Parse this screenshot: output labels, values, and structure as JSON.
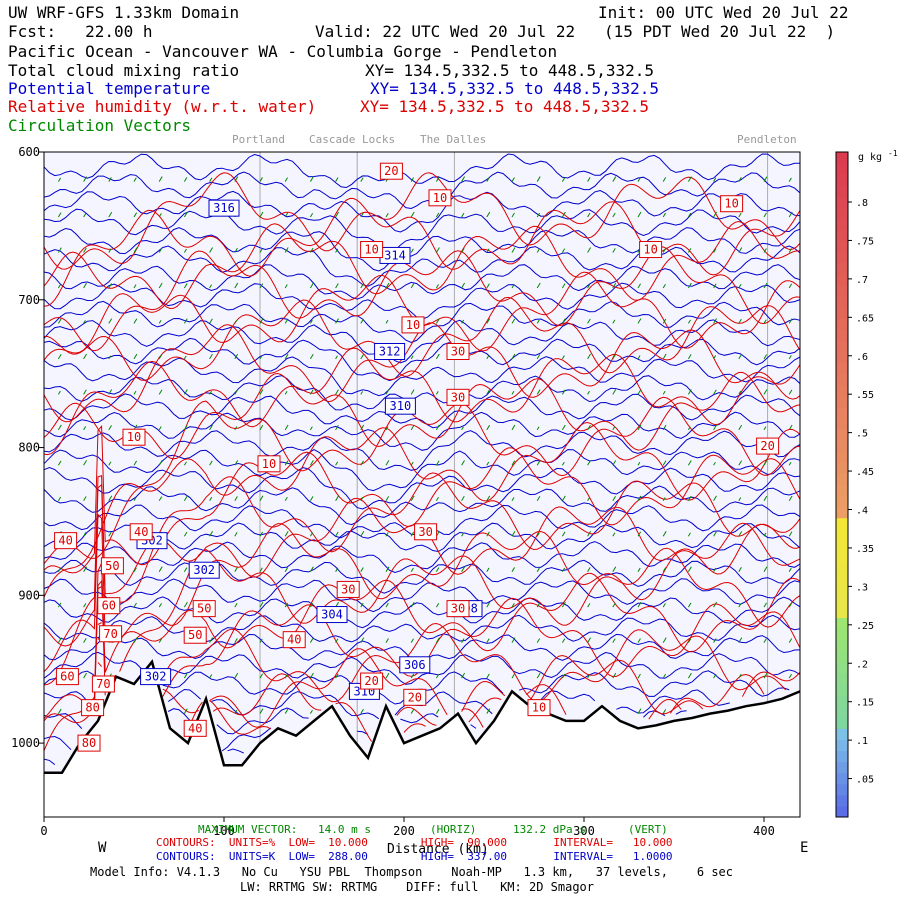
{
  "header": {
    "title": "UW WRF-GFS 1.33km Domain",
    "init": "Init: 00 UTC Wed 20 Jul 22",
    "fcst": "Fcst:   22.00 h",
    "valid": "Valid: 22 UTC Wed 20 Jul 22   (15 PDT Wed 20 Jul 22  )",
    "region": "Pacific Ocean - Vancouver WA - Columbia Gorge - Pendleton",
    "var1": "Total cloud mixing ratio",
    "var1_xy": "XY= 134.5,332.5 to 448.5,332.5",
    "var2": "Potential temperature",
    "var2_xy": "XY= 134.5,332.5 to 448.5,332.5",
    "var3": "Relative humidity (w.r.t. water)",
    "var3_xy": "XY= 134.5,332.5 to 448.5,332.5",
    "var4": "Circulation Vectors"
  },
  "cities": [
    "Portland",
    "Cascade Locks",
    "The Dalles",
    "Pendleton"
  ],
  "footer": {
    "vector_label": "MAXIMUM VECTOR:",
    "vector_horiz": "14.0 m s",
    "vector_horiz_unit": "(HORIZ)",
    "vector_vert": "132.2 dPa s",
    "vector_vert_unit": "(VERT)",
    "west": "W",
    "east": "E",
    "xlabel": "Distance (km)",
    "rh_contours": "CONTOURS:  UNITS=%  LOW=  10.000        HIGH=  90.000       INTERVAL=   10.000",
    "th_contours": "CONTOURS:  UNITS=K  LOW=  288.00        HIGH=  337.00       INTERVAL=   1.0000",
    "model_info": "Model Info: V4.1.3   No Cu   YSU PBL  Thompson    Noah-MP   1.3 km,   37 levels,    6 sec",
    "model_info2": "LW: RRTMG SW: RRTMG    DIFF: full   KM: 2D Smagor"
  },
  "colors": {
    "theta": "#0000cc",
    "rh": "#dd0000",
    "vectors": "#008800",
    "terrain": "#000000",
    "background": "#f5f5ff"
  },
  "chart_data": {
    "type": "line",
    "title": "UW WRF-GFS 1.33km Domain",
    "xlabel": "Distance (km)",
    "ylabel": "",
    "xlim": [
      0,
      420
    ],
    "ylim": [
      1050,
      600
    ],
    "x_ticks": [
      0,
      100,
      200,
      300,
      400
    ],
    "y_ticks": [
      600,
      700,
      800,
      900,
      1000
    ],
    "y_tick_labels": [
      "600",
      "700",
      "800",
      "900",
      "1000"
    ],
    "city_positions_km": {
      "Portland": 120,
      "Cascade Locks": 174,
      "The Dalles": 228,
      "Pendleton": 402
    },
    "terrain": {
      "x": [
        0,
        10,
        20,
        30,
        40,
        50,
        60,
        70,
        80,
        90,
        100,
        110,
        120,
        130,
        140,
        150,
        160,
        170,
        180,
        190,
        200,
        210,
        220,
        230,
        240,
        250,
        260,
        270,
        280,
        290,
        300,
        310,
        320,
        330,
        340,
        350,
        360,
        370,
        380,
        390,
        400,
        410,
        420
      ],
      "p": [
        1020,
        1020,
        1000,
        985,
        955,
        960,
        945,
        990,
        1000,
        970,
        1015,
        1015,
        1000,
        990,
        995,
        985,
        975,
        995,
        1010,
        975,
        1000,
        995,
        990,
        980,
        1000,
        985,
        965,
        975,
        980,
        985,
        985,
        975,
        985,
        990,
        988,
        985,
        983,
        980,
        978,
        975,
        973,
        970,
        965
      ]
    },
    "theta_labels": [
      {
        "value": "316",
        "x": 100,
        "p": 638
      },
      {
        "value": "314",
        "x": 195,
        "p": 670
      },
      {
        "value": "312",
        "x": 192,
        "p": 735
      },
      {
        "value": "310",
        "x": 198,
        "p": 772
      },
      {
        "value": "302",
        "x": 60,
        "p": 863
      },
      {
        "value": "302",
        "x": 89,
        "p": 883
      },
      {
        "value": "302",
        "x": 62,
        "p": 955
      },
      {
        "value": "304",
        "x": 160,
        "p": 913
      },
      {
        "value": "306",
        "x": 206,
        "p": 947
      },
      {
        "value": "308",
        "x": 235,
        "p": 909
      },
      {
        "value": "310",
        "x": 178,
        "p": 965
      }
    ],
    "rh_labels": [
      {
        "value": "20",
        "x": 193,
        "p": 613
      },
      {
        "value": "10",
        "x": 220,
        "p": 631
      },
      {
        "value": "10",
        "x": 382,
        "p": 635
      },
      {
        "value": "10",
        "x": 337,
        "p": 666
      },
      {
        "value": "10",
        "x": 182,
        "p": 666
      },
      {
        "value": "10",
        "x": 205,
        "p": 717
      },
      {
        "value": "30",
        "x": 230,
        "p": 735
      },
      {
        "value": "30",
        "x": 230,
        "p": 766
      },
      {
        "value": "10",
        "x": 50,
        "p": 793
      },
      {
        "value": "10",
        "x": 125,
        "p": 811
      },
      {
        "value": "20",
        "x": 402,
        "p": 799
      },
      {
        "value": "40",
        "x": 12,
        "p": 863
      },
      {
        "value": "40",
        "x": 54,
        "p": 857
      },
      {
        "value": "50",
        "x": 38,
        "p": 880
      },
      {
        "value": "30",
        "x": 212,
        "p": 857
      },
      {
        "value": "30",
        "x": 169,
        "p": 896
      },
      {
        "value": "60",
        "x": 36,
        "p": 907
      },
      {
        "value": "70",
        "x": 37,
        "p": 926
      },
      {
        "value": "50",
        "x": 89,
        "p": 909
      },
      {
        "value": "50",
        "x": 84,
        "p": 927
      },
      {
        "value": "40",
        "x": 139,
        "p": 930
      },
      {
        "value": "60",
        "x": 13,
        "p": 955
      },
      {
        "value": "70",
        "x": 33,
        "p": 960
      },
      {
        "value": "80",
        "x": 27,
        "p": 976
      },
      {
        "value": "20",
        "x": 182,
        "p": 958
      },
      {
        "value": "20",
        "x": 206,
        "p": 969
      },
      {
        "value": "10",
        "x": 275,
        "p": 976
      },
      {
        "value": "40",
        "x": 84,
        "p": 990
      },
      {
        "value": "80",
        "x": 25,
        "p": 1000
      },
      {
        "value": "30",
        "x": 230,
        "p": 909
      }
    ],
    "colorbar": {
      "unit": "g kg",
      "unit_exp": "-1",
      "ticks": [
        ".8",
        ".75",
        ".7",
        ".65",
        ".6",
        ".55",
        ".5",
        ".45",
        ".4",
        ".35",
        ".3",
        ".25",
        ".2",
        ".15",
        ".1",
        ".05"
      ]
    }
  }
}
